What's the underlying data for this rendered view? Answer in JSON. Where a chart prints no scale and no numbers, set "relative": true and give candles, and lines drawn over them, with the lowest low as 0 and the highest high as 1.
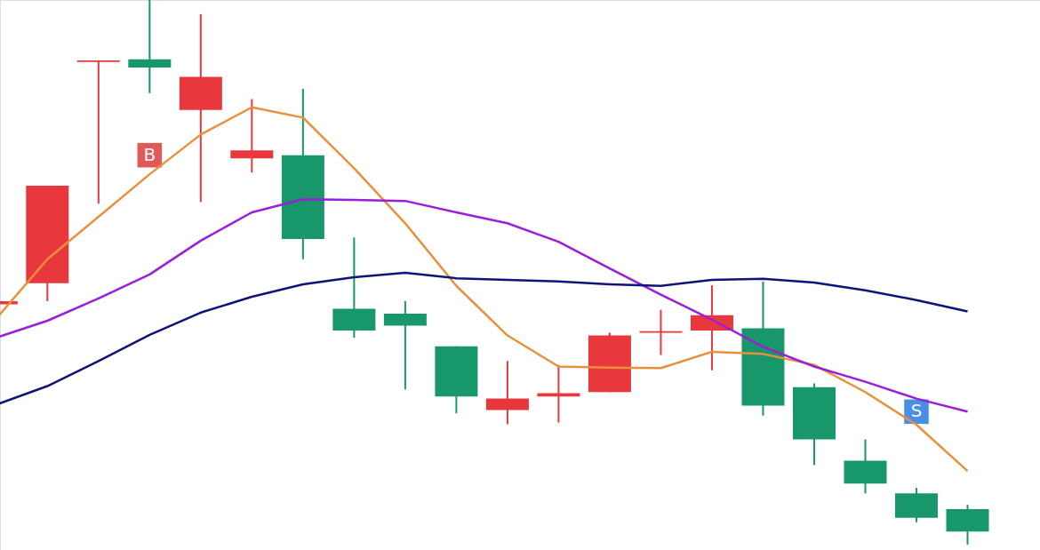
{
  "chart_data": {
    "type": "candlestick",
    "relative": true,
    "categories": [
      null,
      null,
      null,
      null,
      null,
      null,
      null,
      null,
      null,
      null,
      null,
      null,
      null,
      null,
      null,
      null,
      null,
      null,
      null,
      null
    ],
    "ohlc": [
      [
        0.441,
        0.45,
        0.437,
        0.447
      ],
      [
        0.48,
        0.659,
        0.447,
        0.659
      ],
      [
        0.886,
        0.889,
        0.626,
        0.889
      ],
      [
        0.891,
        1,
        0.829,
        0.876
      ],
      [
        0.798,
        0.974,
        0.629,
        0.859
      ],
      [
        0.709,
        0.818,
        0.683,
        0.724
      ],
      [
        0.715,
        0.837,
        0.524,
        0.561
      ],
      [
        0.433,
        0.564,
        0.38,
        0.393
      ],
      [
        0.424,
        0.447,
        0.285,
        0.402
      ],
      [
        0.364,
        0.364,
        0.241,
        0.272
      ],
      [
        0.247,
        0.337,
        0.221,
        0.268
      ],
      [
        0.272,
        0.33,
        0.224,
        0.278
      ],
      [
        0.28,
        0.389,
        0.28,
        0.384
      ],
      [
        0.389,
        0.431,
        0.348,
        0.392
      ],
      [
        0.393,
        0.476,
        0.32,
        0.421
      ],
      [
        0.397,
        0.483,
        0.237,
        0.255
      ],
      [
        0.289,
        0.296,
        0.146,
        0.193
      ],
      [
        0.154,
        0.193,
        0.094,
        0.112
      ],
      [
        0.094,
        0.104,
        0.041,
        0.049
      ],
      [
        0.065,
        0.073,
        0,
        0.024
      ]
    ],
    "colors": [
      "#e8383d",
      "#e8383d",
      "#e8383d",
      "#17976a",
      "#e8383d",
      "#e8383d",
      "#17976a",
      "#17976a",
      "#17976a",
      "#17976a",
      "#e8383d",
      "#e8383d",
      "#e8383d",
      "#e8383d",
      "#e8383d",
      "#17976a",
      "#17976a",
      "#17976a",
      "#17976a",
      "#17976a"
    ],
    "series": [
      {
        "type": "line",
        "color": "#e8913a",
        "values": [
          0.415,
          0.524,
          0.602,
          0.68,
          0.753,
          0.803,
          0.784,
          0.691,
          0.59,
          0.475,
          0.384,
          0.327,
          0.325,
          0.324,
          0.354,
          0.35,
          0.33,
          0.28,
          0.22,
          0.135
        ]
      },
      {
        "type": "line",
        "color": "#9b1ed8",
        "values": [
          0.38,
          0.411,
          0.452,
          0.496,
          0.558,
          0.61,
          0.634,
          0.633,
          0.631,
          0.61,
          0.59,
          0.556,
          0.507,
          0.459,
          0.413,
          0.363,
          0.327,
          0.299,
          0.268,
          0.244
        ]
      },
      {
        "type": "line",
        "color": "#10137a",
        "values": [
          0.257,
          0.291,
          0.337,
          0.385,
          0.426,
          0.455,
          0.478,
          0.491,
          0.499,
          0.489,
          0.486,
          0.483,
          0.478,
          0.475,
          0.486,
          0.488,
          0.481,
          0.467,
          0.449,
          0.428
        ]
      },
      {
        "type": "scatter",
        "name": "B",
        "color": "#e05a5a",
        "marker": "square",
        "values": [
          null,
          null,
          null,
          0.715,
          null,
          null,
          null,
          null,
          null,
          null,
          null,
          null,
          null,
          null,
          null,
          null,
          null,
          null,
          null,
          null
        ]
      },
      {
        "type": "scatter",
        "name": "S",
        "color": "#4a8fe7",
        "marker": "square",
        "values": [
          null,
          null,
          null,
          null,
          null,
          null,
          null,
          null,
          null,
          null,
          null,
          null,
          null,
          null,
          null,
          null,
          null,
          null,
          0.244,
          null
        ]
      }
    ]
  }
}
